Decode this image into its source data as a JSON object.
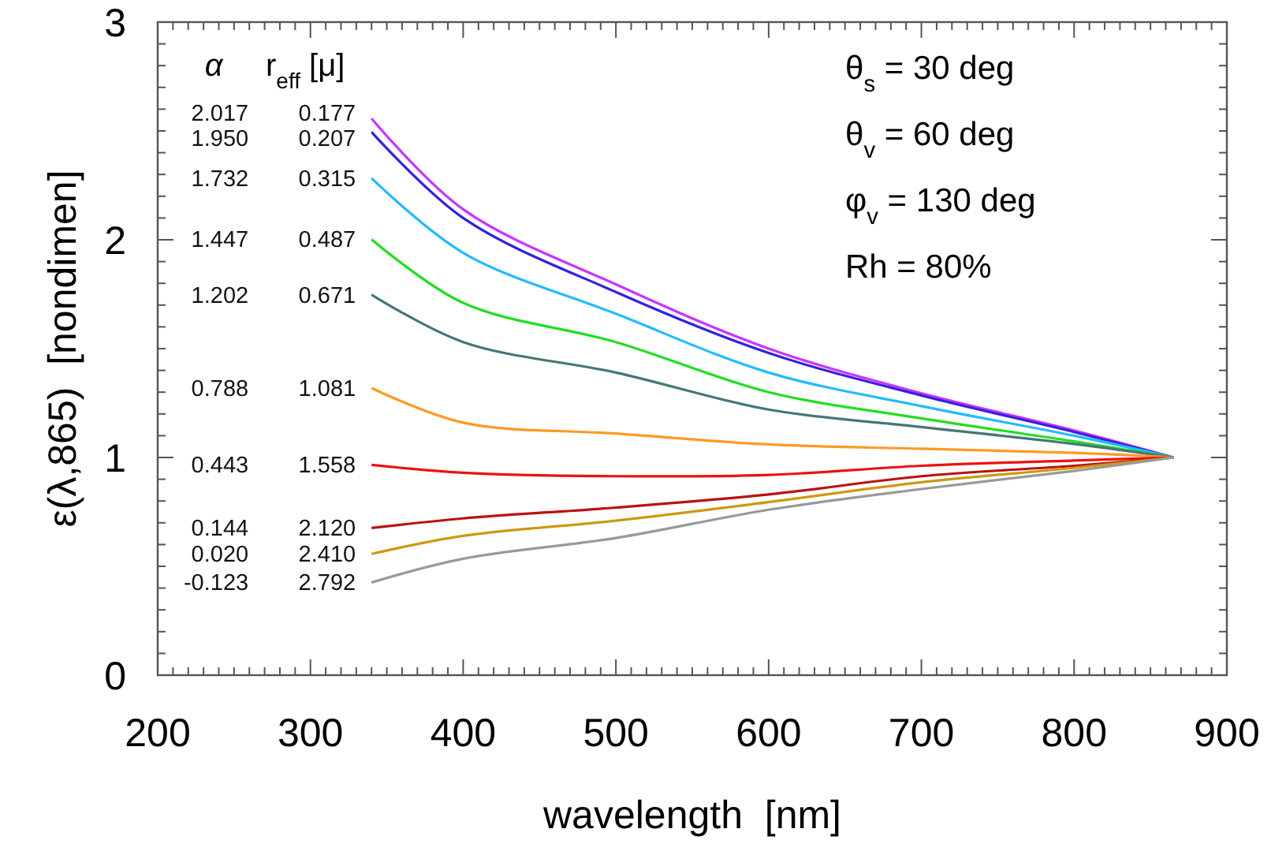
{
  "chart_data": {
    "type": "line",
    "xlabel": "wavelength  [nm]",
    "ylabel": "ε(λ,865)  [nondimen]",
    "x": [
      340,
      400,
      500,
      600,
      700,
      800,
      865
    ],
    "xlim": [
      200,
      900
    ],
    "xticks": [
      200,
      300,
      400,
      500,
      600,
      700,
      800,
      900
    ],
    "ylim": [
      0,
      3
    ],
    "yticks": [
      0,
      1,
      2,
      3
    ],
    "grid": false,
    "marker": "none",
    "line_style": "solid",
    "series": [
      {
        "name": "2.017 0.177",
        "color": "#cc33ff",
        "values": [
          2.557,
          2.14,
          1.795,
          1.5,
          1.295,
          1.124,
          1
        ]
      },
      {
        "name": "1.950 0.207",
        "color": "#3322dd",
        "values": [
          2.495,
          2.1,
          1.76,
          1.48,
          1.285,
          1.117,
          1
        ]
      },
      {
        "name": "1.732 0.315",
        "color": "#22bbff",
        "values": [
          2.283,
          1.94,
          1.66,
          1.39,
          1.236,
          1.1,
          1
        ]
      },
      {
        "name": "1.447 0.487",
        "color": "#22dd22",
        "values": [
          2.002,
          1.71,
          1.53,
          1.3,
          1.18,
          1.074,
          1
        ]
      },
      {
        "name": "1.202 0.671",
        "color": "#447777",
        "values": [
          1.748,
          1.53,
          1.39,
          1.22,
          1.14,
          1.062,
          1
        ]
      },
      {
        "name": "0.788 1.081",
        "color": "#ff9922",
        "values": [
          1.319,
          1.16,
          1.11,
          1.06,
          1.04,
          1.021,
          1
        ]
      },
      {
        "name": "0.443 1.558",
        "color": "#ee1111",
        "values": [
          0.966,
          0.93,
          0.914,
          0.92,
          0.962,
          0.986,
          1
        ]
      },
      {
        "name": "0.144 2.120",
        "color": "#bb1111",
        "values": [
          0.676,
          0.72,
          0.77,
          0.83,
          0.914,
          0.962,
          1
        ]
      },
      {
        "name": "0.020 2.410",
        "color": "#cc9911",
        "values": [
          0.557,
          0.64,
          0.71,
          0.795,
          0.886,
          0.952,
          1
        ]
      },
      {
        "name": "-0.123 2.792",
        "color": "#999999",
        "values": [
          0.426,
          0.535,
          0.63,
          0.76,
          0.855,
          0.938,
          1
        ]
      }
    ],
    "annotations": [
      "α",
      "r$_{eff}$ [μ]",
      "θ$_{s}$ = 30 deg",
      "θ$_{v}$ = 60 deg",
      "φ$_{v}$ = 130 deg",
      "Rh = 80%"
    ]
  }
}
